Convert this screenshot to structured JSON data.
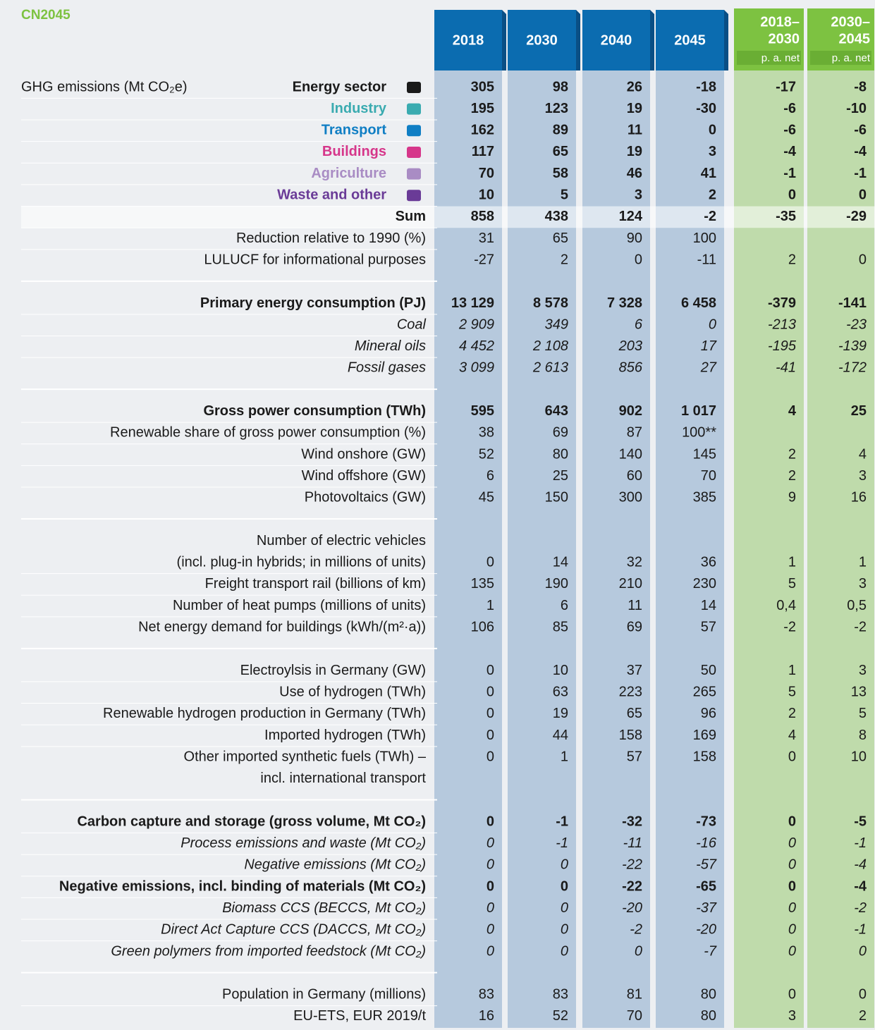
{
  "title": "CN2045",
  "header": {
    "years": [
      "2018",
      "2030",
      "2040",
      "2045"
    ],
    "rates": [
      {
        "lines": [
          "2018–",
          "2030"
        ],
        "note": "p. a. net"
      },
      {
        "lines": [
          "2030–",
          "2045"
        ],
        "note": "p. a. net"
      }
    ]
  },
  "group_label": "GHG emissions (Mt CO₂e)",
  "sections": [
    {
      "rows": [
        {
          "label": "Energy sector",
          "style": "bold",
          "color": "#1a1a1a",
          "values": [
            305,
            98,
            26,
            -18,
            -17,
            -8
          ]
        },
        {
          "label": "Industry",
          "style": "bold",
          "color": "#3aabb0",
          "values": [
            195,
            123,
            19,
            -30,
            -6,
            -10
          ]
        },
        {
          "label": "Transport",
          "style": "bold",
          "color": "#0f7ec4",
          "values": [
            162,
            89,
            11,
            0,
            -6,
            -6
          ]
        },
        {
          "label": "Buildings",
          "style": "bold",
          "color": "#d6368a",
          "values": [
            117,
            65,
            19,
            3,
            -4,
            -4
          ]
        },
        {
          "label": "Agriculture",
          "style": "bold",
          "color": "#a98cc4",
          "values": [
            70,
            58,
            46,
            41,
            -1,
            -1
          ]
        },
        {
          "label": "Waste and other",
          "style": "bold",
          "color": "#6a3b97",
          "values": [
            10,
            5,
            3,
            2,
            0,
            0
          ]
        },
        {
          "label": "Sum",
          "style": "bold",
          "highlight": true,
          "values": [
            858,
            438,
            124,
            -2,
            -35,
            -29
          ]
        },
        {
          "label": "Reduction relative to 1990 (%)",
          "style": "normal",
          "values": [
            31,
            65,
            90,
            100,
            null,
            null
          ]
        },
        {
          "label": "LULUCF for informational purposes",
          "style": "normal",
          "values": [
            -27,
            2,
            0,
            -11,
            2,
            0
          ]
        }
      ]
    },
    {
      "rows": [
        {
          "label": "Primary energy consumption (PJ)",
          "style": "bold",
          "values": [
            "13 129",
            "8 578",
            "7 328",
            "6 458",
            -379,
            -141
          ]
        },
        {
          "label": "Coal",
          "style": "italic",
          "values": [
            "2 909",
            349,
            6,
            0,
            -213,
            -23
          ]
        },
        {
          "label": "Mineral oils",
          "style": "italic",
          "values": [
            "4 452",
            "2 108",
            203,
            17,
            -195,
            -139
          ]
        },
        {
          "label": "Fossil gases",
          "style": "italic",
          "values": [
            "3 099",
            "2 613",
            856,
            27,
            -41,
            -172
          ]
        }
      ]
    },
    {
      "rows": [
        {
          "label": "Gross power consumption (TWh)",
          "style": "bold",
          "values": [
            595,
            643,
            902,
            "1 017",
            4,
            25
          ]
        },
        {
          "label": "Renewable share of gross power consumption (%)",
          "style": "normal",
          "values": [
            38,
            69,
            87,
            "100**",
            null,
            null
          ]
        },
        {
          "label": "Wind onshore (GW)",
          "style": "normal",
          "values": [
            52,
            80,
            140,
            145,
            2,
            4
          ]
        },
        {
          "label": "Wind offshore (GW)",
          "style": "normal",
          "values": [
            6,
            25,
            60,
            70,
            2,
            3
          ]
        },
        {
          "label": "Photovoltaics (GW)",
          "style": "normal",
          "values": [
            45,
            150,
            300,
            385,
            9,
            16
          ]
        }
      ]
    },
    {
      "rows": [
        {
          "label": [
            "Number of electric vehicles",
            "(incl. plug-in hybrids; in millions of units)"
          ],
          "style": "normal",
          "values": [
            0,
            14,
            32,
            36,
            1,
            1
          ]
        },
        {
          "label": "Freight transport rail (billions of km)",
          "style": "normal",
          "values": [
            135,
            190,
            210,
            230,
            5,
            3
          ]
        },
        {
          "label": "Number of heat pumps (millions of units)",
          "style": "normal",
          "values": [
            1,
            6,
            11,
            14,
            "0,4",
            "0,5"
          ]
        },
        {
          "label": "Net energy demand for buildings (kWh/(m²·a))",
          "style": "normal",
          "values": [
            106,
            85,
            69,
            57,
            -2,
            -2
          ]
        }
      ]
    },
    {
      "rows": [
        {
          "label": "Electroylsis in Germany (GW)",
          "style": "normal",
          "values": [
            0,
            10,
            37,
            50,
            1,
            3
          ]
        },
        {
          "label": "Use of hydrogen (TWh)",
          "style": "normal",
          "values": [
            0,
            63,
            223,
            265,
            5,
            13
          ]
        },
        {
          "label": "Renewable hydrogen production in Germany (TWh)",
          "style": "normal",
          "values": [
            0,
            19,
            65,
            96,
            2,
            5
          ]
        },
        {
          "label": "Imported hydrogen (TWh)",
          "style": "normal",
          "values": [
            0,
            44,
            158,
            169,
            4,
            8
          ]
        },
        {
          "label": [
            "Other imported synthetic fuels (TWh) –",
            "incl. international transport"
          ],
          "style": "normal",
          "values": [
            0,
            1,
            57,
            158,
            0,
            10
          ]
        }
      ]
    },
    {
      "rows": [
        {
          "label": "Carbon capture and storage (gross volume, Mt CO₂)",
          "style": "bold",
          "values": [
            0,
            -1,
            -32,
            -73,
            0,
            -5
          ]
        },
        {
          "label": "Process emissions and waste (Mt CO₂)",
          "style": "italic",
          "values": [
            0,
            -1,
            -11,
            -16,
            0,
            -1
          ]
        },
        {
          "label": "Negative emissions (Mt CO₂)",
          "style": "italic",
          "values": [
            0,
            0,
            -22,
            -57,
            0,
            -4
          ]
        },
        {
          "label": "Negative emissions, incl. binding of materials (Mt CO₂)",
          "style": "bold",
          "values": [
            0,
            0,
            -22,
            -65,
            0,
            -4
          ]
        },
        {
          "label": "Biomass CCS (BECCS, Mt CO₂)",
          "style": "italic",
          "values": [
            0,
            0,
            -20,
            -37,
            0,
            -2
          ]
        },
        {
          "label": "Direct Act Capture CCS (DACCS, Mt CO₂)",
          "style": "italic",
          "values": [
            0,
            0,
            -2,
            -20,
            0,
            -1
          ]
        },
        {
          "label": "Green polymers from imported feedstock (Mt CO₂)",
          "style": "italic",
          "values": [
            0,
            0,
            0,
            -7,
            0,
            0
          ]
        }
      ]
    },
    {
      "rows": [
        {
          "label": "Population in Germany (millions)",
          "style": "normal",
          "values": [
            83,
            83,
            81,
            80,
            0,
            0
          ]
        },
        {
          "label": "EU-ETS, EUR 2019/t",
          "style": "normal",
          "values": [
            16,
            52,
            70,
            80,
            3,
            2
          ]
        }
      ]
    }
  ]
}
